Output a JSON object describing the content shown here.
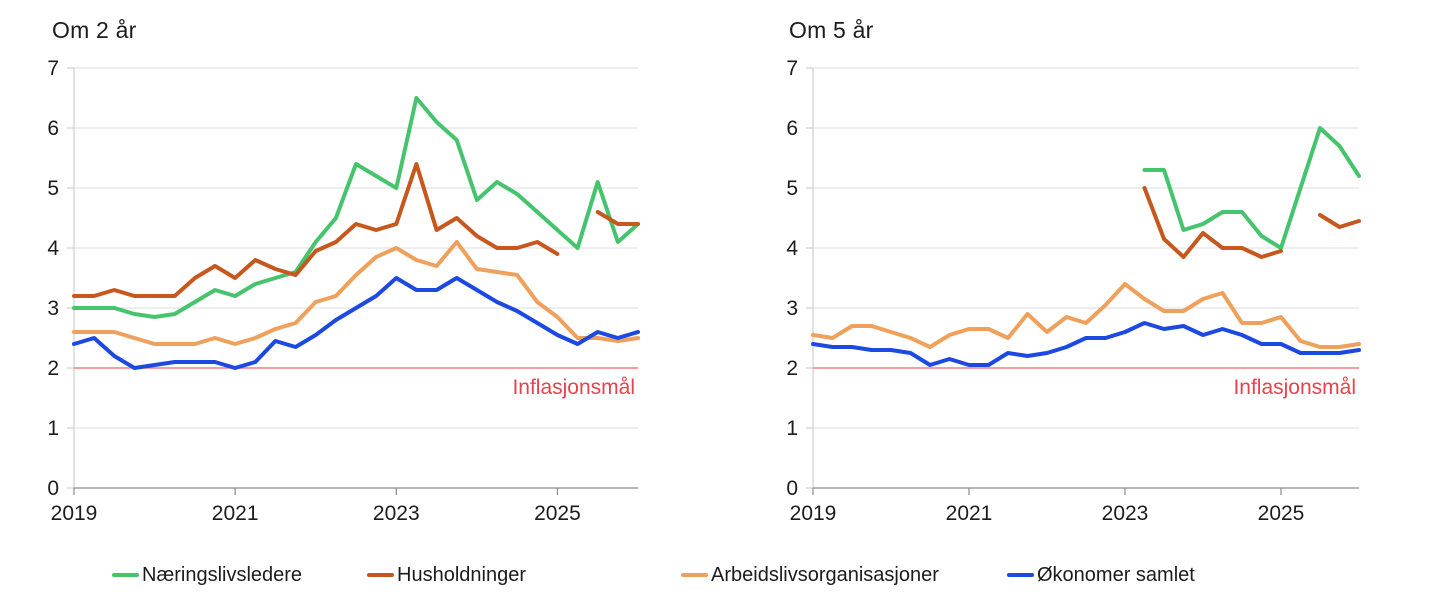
{
  "page": {
    "background": "#ffffff"
  },
  "colors": {
    "green": "#45C46D",
    "rust": "#C6581E",
    "orange": "#EFA05B",
    "blue": "#1B49E2",
    "target_line": "#F47C7C",
    "target_text": "#E8424D",
    "gridline": "#DCDCDC",
    "spine": "#CFCFCF",
    "axis": "#8A8A8A",
    "tick_text": "#1c1c1c"
  },
  "legend": {
    "items": [
      {
        "label": "Næringslivsledere",
        "color": "green"
      },
      {
        "label": "Husholdninger",
        "color": "rust"
      },
      {
        "label": "Arbeidslivsorganisasjoner",
        "color": "orange"
      },
      {
        "label": "Økonomer samlet",
        "color": "blue"
      }
    ]
  },
  "chart_data": [
    {
      "type": "line",
      "title": "Om 2 år",
      "ylim": [
        0,
        7
      ],
      "yticks": [
        0,
        1,
        2,
        3,
        4,
        5,
        6,
        7
      ],
      "xticks": [
        {
          "label": "2019",
          "index": 0
        },
        {
          "label": "2021",
          "index": 8
        },
        {
          "label": "2023",
          "index": 16
        },
        {
          "label": "2025",
          "index": 24
        }
      ],
      "target_line": {
        "value": 2,
        "label": "Inflasjonsmål"
      },
      "x_labels": [
        "2019-Q1",
        "2019-Q2",
        "2019-Q3",
        "2019-Q4",
        "2020-Q1",
        "2020-Q2",
        "2020-Q3",
        "2020-Q4",
        "2021-Q1",
        "2021-Q2",
        "2021-Q3",
        "2021-Q4",
        "2022-Q1",
        "2022-Q2",
        "2022-Q3",
        "2022-Q4",
        "2023-Q1",
        "2023-Q2",
        "2023-Q3",
        "2023-Q4",
        "2024-Q1",
        "2024-Q2",
        "2024-Q3",
        "2024-Q4",
        "2025-Q1",
        "2025-Q2",
        "2025-Q3",
        "2025-Q4",
        "2026-Q1"
      ],
      "series": [
        {
          "name": "Næringslivsledere",
          "color": "green",
          "values": [
            3.0,
            3.0,
            3.0,
            2.9,
            2.85,
            2.9,
            3.1,
            3.3,
            3.2,
            3.4,
            3.5,
            3.6,
            4.1,
            4.5,
            5.4,
            5.2,
            5.0,
            6.5,
            6.1,
            5.8,
            4.8,
            5.1,
            4.9,
            4.6,
            4.3,
            4.0,
            5.1,
            4.1,
            4.4
          ]
        },
        {
          "name": "Husholdninger",
          "color": "rust",
          "values": [
            3.2,
            3.2,
            3.3,
            3.2,
            3.2,
            3.2,
            3.5,
            3.7,
            3.5,
            3.8,
            3.65,
            3.55,
            3.95,
            4.1,
            4.4,
            4.3,
            4.4,
            5.4,
            4.3,
            4.5,
            4.2,
            4.0,
            4.0,
            4.1,
            3.9,
            null,
            4.6,
            4.4,
            4.4
          ]
        },
        {
          "name": "Arbeidslivsorganisasjoner",
          "color": "orange",
          "values": [
            2.6,
            2.6,
            2.6,
            2.5,
            2.4,
            2.4,
            2.4,
            2.5,
            2.4,
            2.5,
            2.65,
            2.75,
            3.1,
            3.2,
            3.55,
            3.85,
            4.0,
            3.8,
            3.7,
            4.1,
            3.65,
            3.6,
            3.55,
            3.1,
            2.85,
            2.5,
            2.5,
            2.45,
            2.5
          ]
        },
        {
          "name": "Økonomer samlet",
          "color": "blue",
          "values": [
            2.4,
            2.5,
            2.2,
            2.0,
            2.05,
            2.1,
            2.1,
            2.1,
            2.0,
            2.1,
            2.45,
            2.35,
            2.55,
            2.8,
            3.0,
            3.2,
            3.5,
            3.3,
            3.3,
            3.5,
            3.3,
            3.1,
            2.95,
            2.75,
            2.55,
            2.4,
            2.6,
            2.5,
            2.6
          ]
        }
      ]
    },
    {
      "type": "line",
      "title": "Om 5 år",
      "ylim": [
        0,
        7
      ],
      "yticks": [
        0,
        1,
        2,
        3,
        4,
        5,
        6,
        7
      ],
      "xticks": [
        {
          "label": "2019",
          "index": 0
        },
        {
          "label": "2021",
          "index": 8
        },
        {
          "label": "2023",
          "index": 16
        },
        {
          "label": "2025",
          "index": 24
        }
      ],
      "target_line": {
        "value": 2,
        "label": "Inflasjonsmål"
      },
      "x_labels": [
        "2019-Q1",
        "2019-Q2",
        "2019-Q3",
        "2019-Q4",
        "2020-Q1",
        "2020-Q2",
        "2020-Q3",
        "2020-Q4",
        "2021-Q1",
        "2021-Q2",
        "2021-Q3",
        "2021-Q4",
        "2022-Q1",
        "2022-Q2",
        "2022-Q3",
        "2022-Q4",
        "2023-Q1",
        "2023-Q2",
        "2023-Q3",
        "2023-Q4",
        "2024-Q1",
        "2024-Q2",
        "2024-Q3",
        "2024-Q4",
        "2025-Q1",
        "2025-Q2",
        "2025-Q3",
        "2025-Q4",
        "2026-Q1"
      ],
      "series": [
        {
          "name": "Næringslivsledere",
          "color": "green",
          "values": [
            null,
            null,
            null,
            null,
            null,
            null,
            null,
            null,
            null,
            null,
            null,
            null,
            null,
            null,
            null,
            null,
            null,
            5.3,
            5.3,
            4.3,
            4.4,
            4.6,
            4.6,
            4.2,
            4.0,
            5.0,
            6.0,
            5.7,
            5.2
          ]
        },
        {
          "name": "Husholdninger",
          "color": "rust",
          "values": [
            null,
            null,
            null,
            null,
            null,
            null,
            null,
            null,
            null,
            null,
            null,
            null,
            null,
            null,
            null,
            null,
            null,
            5.0,
            4.15,
            3.85,
            4.25,
            4.0,
            4.0,
            3.85,
            3.95,
            null,
            4.55,
            4.35,
            4.45
          ]
        },
        {
          "name": "Arbeidslivsorganisasjoner",
          "color": "orange",
          "values": [
            2.55,
            2.5,
            2.7,
            2.7,
            2.6,
            2.5,
            2.35,
            2.55,
            2.65,
            2.65,
            2.5,
            2.9,
            2.6,
            2.85,
            2.75,
            3.05,
            3.4,
            3.15,
            2.95,
            2.95,
            3.15,
            3.25,
            2.75,
            2.75,
            2.85,
            2.45,
            2.35,
            2.35,
            2.4
          ]
        },
        {
          "name": "Økonomer samlet",
          "color": "blue",
          "values": [
            2.4,
            2.35,
            2.35,
            2.3,
            2.3,
            2.25,
            2.05,
            2.15,
            2.05,
            2.05,
            2.25,
            2.2,
            2.25,
            2.35,
            2.5,
            2.5,
            2.6,
            2.75,
            2.65,
            2.7,
            2.55,
            2.65,
            2.55,
            2.4,
            2.4,
            2.25,
            2.25,
            2.25,
            2.3
          ]
        }
      ]
    }
  ]
}
